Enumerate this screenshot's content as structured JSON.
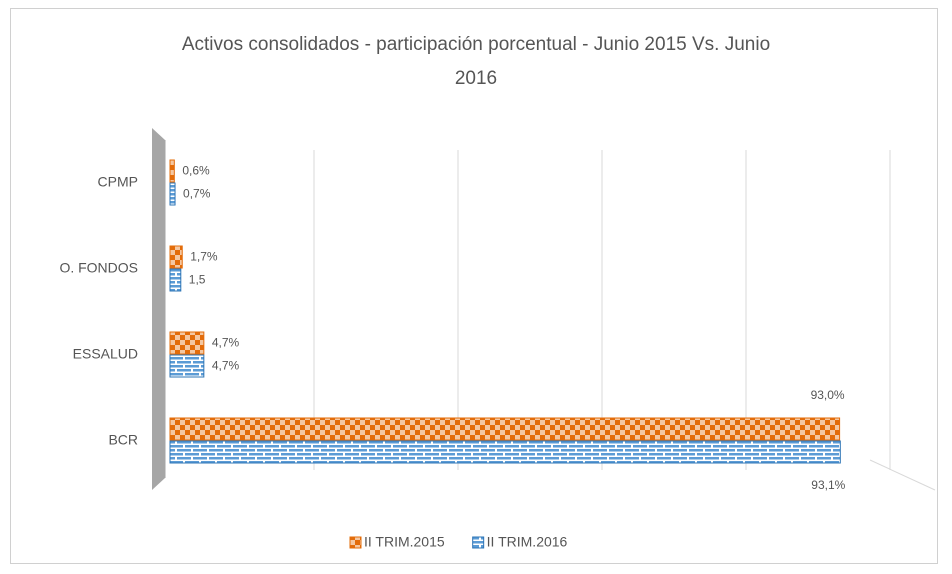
{
  "chart_data": {
    "type": "bar",
    "orientation": "horizontal",
    "title": "Activos consolidados - participación porcentual - Junio 2015 Vs. Junio 2016",
    "categories": [
      "BCR",
      "ESSALUD",
      "O. FONDOS",
      "CPMP"
    ],
    "series": [
      {
        "name": "II TRIM.2015",
        "color": "#e36c0a",
        "values": [
          93.0,
          4.7,
          1.7,
          0.6
        ],
        "value_labels": [
          "93,0%",
          "4,7%",
          "1,7%",
          "0,6%"
        ]
      },
      {
        "name": "II TRIM.2016",
        "color": "#2e75b6",
        "values": [
          93.1,
          4.7,
          1.5,
          0.7
        ],
        "value_labels": [
          "93,1%",
          "4,7%",
          "1,5",
          "0,7%"
        ]
      }
    ],
    "xlim": [
      0,
      100
    ],
    "xticks": [
      0,
      20,
      40,
      60,
      80,
      100
    ],
    "grid": true,
    "legend": "bottom"
  }
}
